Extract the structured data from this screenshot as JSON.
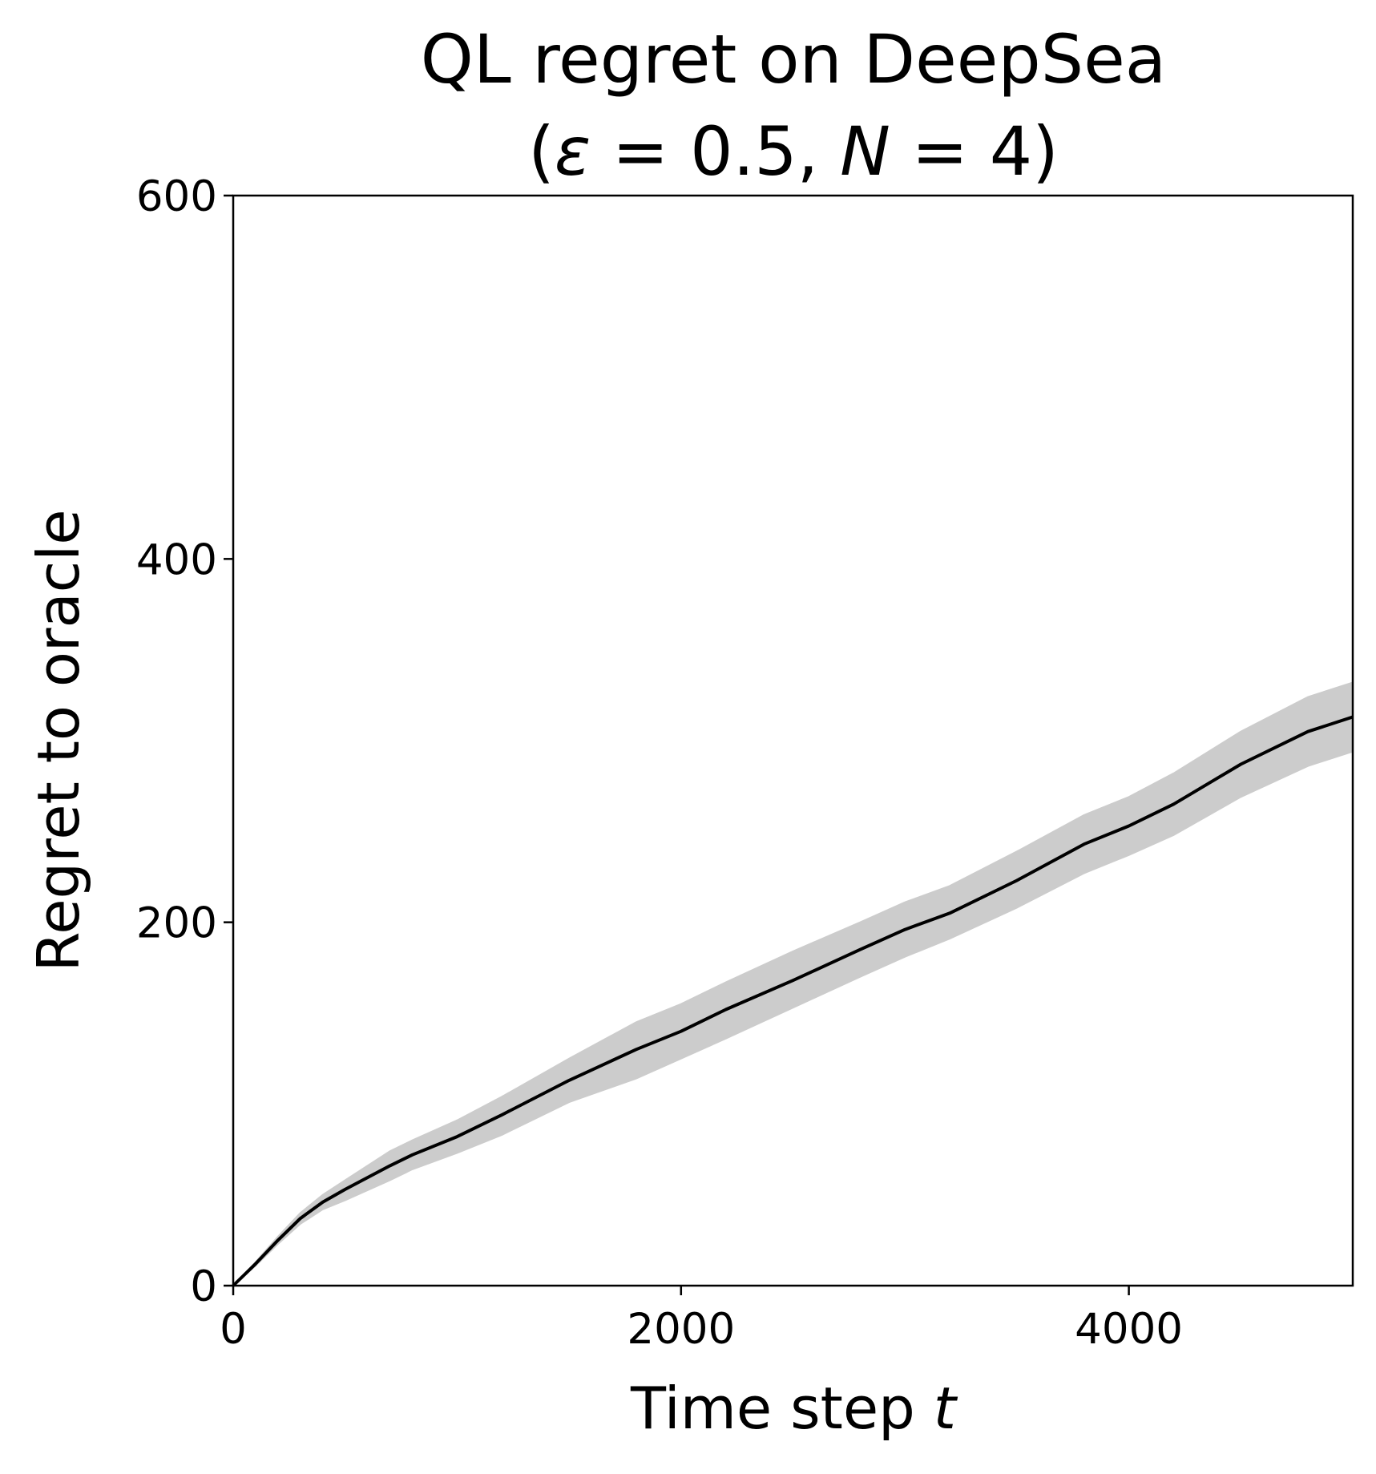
{
  "chart_data": {
    "type": "line",
    "title_line1": "QL regret on DeepSea",
    "title_line2": {
      "open": "(",
      "epsilon": "ε",
      "eq1": " = 0.5, ",
      "n": "N",
      "eq2": " = 4)"
    },
    "xlabel": {
      "text": "Time step ",
      "var": "t"
    },
    "ylabel": "Regret to oracle",
    "xlim": [
      0,
      5000
    ],
    "ylim": [
      0,
      600
    ],
    "xticks": [
      0,
      2000,
      4000
    ],
    "yticks": [
      0,
      200,
      400,
      600
    ],
    "xtick_labels": [
      "0",
      "2000",
      "4000"
    ],
    "ytick_labels": [
      "0",
      "200",
      "400",
      "600"
    ],
    "grid": false,
    "colors": {
      "line": "#000000",
      "band": "#cccccc"
    },
    "series": [
      {
        "x": [
          0,
          100,
          200,
          300,
          400,
          500,
          700,
          800,
          1000,
          1200,
          1500,
          1800,
          2000,
          2200,
          2500,
          2800,
          3000,
          3200,
          3500,
          3800,
          4000,
          4200,
          4500,
          4800,
          5000
        ],
        "y": [
          0,
          12,
          25,
          37,
          46,
          53,
          66,
          72,
          82,
          94,
          113,
          130,
          140,
          152,
          168,
          185,
          196,
          205,
          223,
          243,
          253,
          265,
          287,
          305,
          313
        ],
        "lower": [
          0,
          11,
          23,
          34,
          42,
          47,
          58,
          64,
          73,
          83,
          101,
          114,
          125,
          136,
          153,
          170,
          181,
          191,
          208,
          227,
          237,
          248,
          269,
          286,
          294
        ],
        "upper": [
          0,
          13,
          27,
          40,
          50,
          58,
          74,
          80,
          91,
          104,
          125,
          145,
          155,
          167,
          184,
          200,
          211,
          220,
          239,
          259,
          269,
          282,
          305,
          324,
          332
        ]
      }
    ]
  }
}
